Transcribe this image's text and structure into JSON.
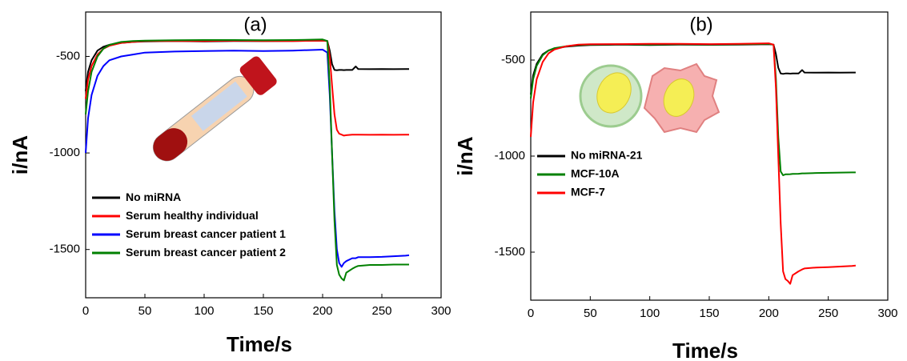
{
  "chart_data": [
    {
      "type": "line",
      "title": "(a)",
      "x_label": "Time/s",
      "y_label": "i/nA",
      "xlim": [
        0,
        300
      ],
      "xticks": [
        0,
        50,
        100,
        150,
        200,
        250,
        300
      ],
      "ylim": [
        -1750,
        -270
      ],
      "yticks": [
        -1500,
        -1000,
        -500
      ],
      "legend": "lower left",
      "x": [
        0,
        2,
        5,
        10,
        15,
        20,
        30,
        40,
        50,
        75,
        100,
        125,
        150,
        175,
        200,
        204,
        206,
        208,
        210,
        212,
        214,
        216,
        218,
        220,
        225,
        228,
        230,
        240,
        250,
        260,
        270,
        273
      ],
      "series": [
        {
          "name": "No miRNA",
          "color": "#000000",
          "values": [
            -680,
            -580,
            -520,
            -470,
            -450,
            -440,
            -430,
            -425,
            -422,
            -420,
            -422,
            -420,
            -421,
            -420,
            -418,
            -420,
            -470,
            -540,
            -570,
            -572,
            -570,
            -570,
            -571,
            -570,
            -570,
            -552,
            -565,
            -566,
            -565,
            -566,
            -565,
            -565
          ]
        },
        {
          "name": "Serum healthy individual",
          "color": "#ff0000",
          "values": [
            -720,
            -620,
            -550,
            -490,
            -460,
            -445,
            -430,
            -425,
            -420,
            -420,
            -420,
            -418,
            -420,
            -420,
            -418,
            -420,
            -500,
            -650,
            -800,
            -880,
            -900,
            -905,
            -910,
            -908,
            -905,
            -905,
            -905,
            -906,
            -905,
            -906,
            -905,
            -905
          ]
        },
        {
          "name": "Serum breast cancer patient 1",
          "color": "#0000ff",
          "values": [
            -1000,
            -820,
            -700,
            -600,
            -550,
            -520,
            -500,
            -490,
            -480,
            -475,
            -472,
            -470,
            -472,
            -470,
            -465,
            -480,
            -700,
            -1000,
            -1300,
            -1500,
            -1570,
            -1590,
            -1570,
            -1560,
            -1545,
            -1545,
            -1540,
            -1540,
            -1538,
            -1535,
            -1532,
            -1530
          ]
        },
        {
          "name": "Serum breast cancer patient 2",
          "color": "#008000",
          "values": [
            -800,
            -680,
            -580,
            -500,
            -460,
            -440,
            -425,
            -420,
            -418,
            -416,
            -415,
            -415,
            -416,
            -415,
            -412,
            -420,
            -650,
            -1000,
            -1350,
            -1580,
            -1630,
            -1650,
            -1660,
            -1620,
            -1600,
            -1590,
            -1585,
            -1580,
            -1580,
            -1578,
            -1578,
            -1578
          ]
        }
      ]
    },
    {
      "type": "line",
      "title": "(b)",
      "x_label": "Time/s",
      "y_label": "i/nA",
      "xlim": [
        0,
        300
      ],
      "xticks": [
        0,
        50,
        100,
        150,
        200,
        250,
        300
      ],
      "ylim": [
        -1750,
        -250
      ],
      "yticks": [
        -1500,
        -1000,
        -500
      ],
      "legend": "center left",
      "x": [
        0,
        2,
        5,
        10,
        15,
        20,
        30,
        40,
        50,
        75,
        100,
        125,
        150,
        175,
        200,
        204,
        206,
        208,
        210,
        212,
        214,
        216,
        218,
        220,
        225,
        228,
        230,
        240,
        250,
        260,
        270,
        273
      ],
      "series": [
        {
          "name": "No miRNA-21",
          "color": "#000000",
          "values": [
            -680,
            -580,
            -520,
            -470,
            -450,
            -440,
            -430,
            -425,
            -422,
            -420,
            -422,
            -420,
            -421,
            -420,
            -418,
            -420,
            -470,
            -540,
            -570,
            -572,
            -570,
            -570,
            -571,
            -570,
            -570,
            -552,
            -565,
            -566,
            -565,
            -566,
            -565,
            -565
          ]
        },
        {
          "name": "MCF-10A",
          "color": "#008000",
          "values": [
            -700,
            -600,
            -530,
            -475,
            -450,
            -438,
            -428,
            -422,
            -420,
            -418,
            -420,
            -418,
            -419,
            -418,
            -416,
            -420,
            -600,
            -900,
            -1080,
            -1100,
            -1095,
            -1095,
            -1094,
            -1093,
            -1092,
            -1090,
            -1090,
            -1088,
            -1087,
            -1086,
            -1085,
            -1085
          ]
        },
        {
          "name": "MCF-7",
          "color": "#ff0000",
          "values": [
            -900,
            -720,
            -600,
            -510,
            -465,
            -445,
            -428,
            -420,
            -418,
            -417,
            -416,
            -416,
            -417,
            -416,
            -413,
            -420,
            -650,
            -1000,
            -1350,
            -1600,
            -1640,
            -1650,
            -1665,
            -1620,
            -1600,
            -1590,
            -1585,
            -1580,
            -1578,
            -1575,
            -1572,
            -1570
          ]
        }
      ]
    }
  ]
}
